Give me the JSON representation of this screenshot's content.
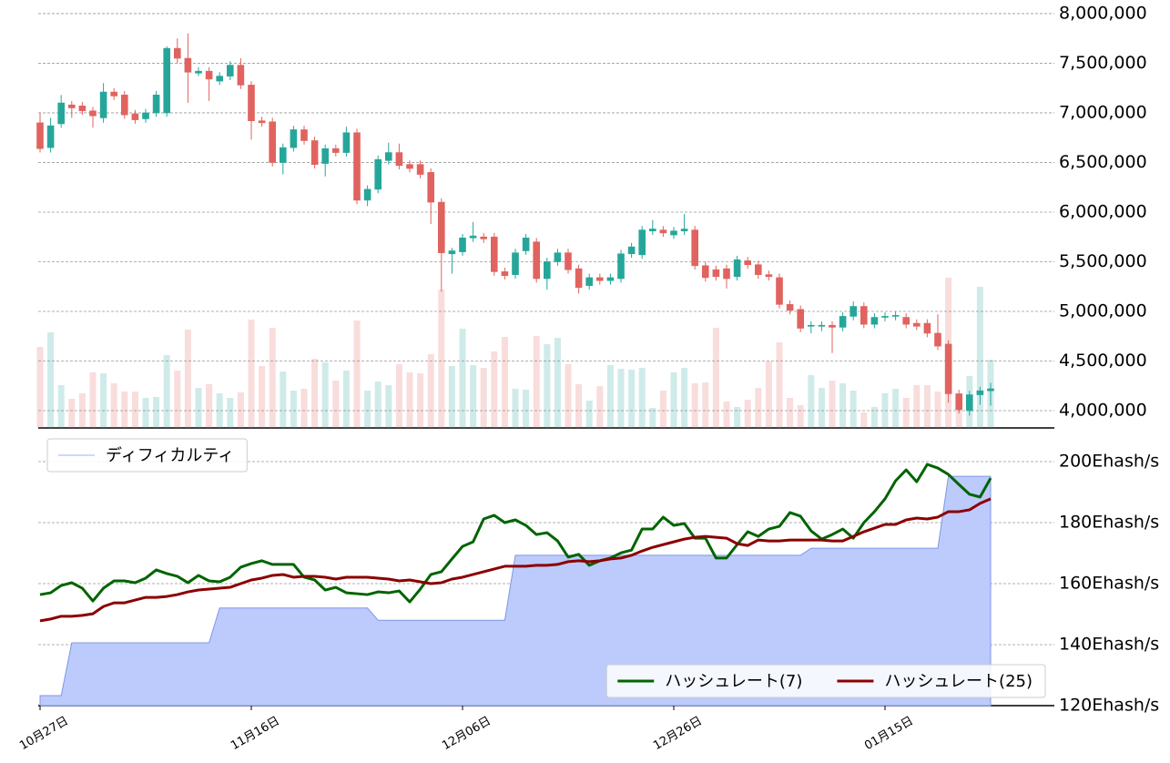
{
  "chart_data": [
    {
      "type": "candlestick",
      "open": [
        6900000,
        6650000,
        6890000,
        7080000,
        7070000,
        7020000,
        6950000,
        7210000,
        7180000,
        6990000,
        6940000,
        7000000,
        7000000,
        7650000,
        7550000,
        7400000,
        7420000,
        7320000,
        7370000,
        7480000,
        7280000,
        6920000,
        6910000,
        6500000,
        6650000,
        6830000,
        6720000,
        6490000,
        6640000,
        6600000,
        6800000,
        6120000,
        6230000,
        6520000,
        6600000,
        6480000,
        6480000,
        6400000,
        6100000,
        5580000,
        5600000,
        5740000,
        5750000,
        5750000,
        5400000,
        5370000,
        5610000,
        5700000,
        5330000,
        5500000,
        5590000,
        5430000,
        5260000,
        5340000,
        5310000,
        5330000,
        5580000,
        5570000,
        5810000,
        5820000,
        5770000,
        5810000,
        5820000,
        5460000,
        5420000,
        5430000,
        5350000,
        5510000,
        5470000,
        5370000,
        5340000,
        5070000,
        5020000,
        4850000,
        4850000,
        4860000,
        4840000,
        4950000,
        5050000,
        4870000,
        4940000,
        4950000,
        4940000,
        4880000,
        4880000,
        4780000,
        4670000,
        4170000,
        4000000,
        4160000,
        4200000
      ],
      "high": [
        7000000,
        6950000,
        7180000,
        7120000,
        7110000,
        7060000,
        7300000,
        7250000,
        7220000,
        7030000,
        7040000,
        7220000,
        7670000,
        7750000,
        7800000,
        7460000,
        7460000,
        7410000,
        7520000,
        7550000,
        7320000,
        6960000,
        6950000,
        6690000,
        6870000,
        6870000,
        6760000,
        6680000,
        6680000,
        6860000,
        6840000,
        6270000,
        6570000,
        6700000,
        6690000,
        6520000,
        6520000,
        6440000,
        6140000,
        5640000,
        5780000,
        5900000,
        5790000,
        5790000,
        5440000,
        5630000,
        5780000,
        5740000,
        5540000,
        5630000,
        5630000,
        5470000,
        5380000,
        5380000,
        5380000,
        5620000,
        5690000,
        5860000,
        5920000,
        5860000,
        5850000,
        5980000,
        5860000,
        5500000,
        5460000,
        5470000,
        5560000,
        5550000,
        5510000,
        5410000,
        5380000,
        5110000,
        5060000,
        4900000,
        4900000,
        4900000,
        4990000,
        5100000,
        5090000,
        4980000,
        4990000,
        5000000,
        4980000,
        4920000,
        4920000,
        4970000,
        4710000,
        4210000,
        4200000,
        4240000,
        4280000
      ],
      "low": [
        6600000,
        6600000,
        6850000,
        6950000,
        6980000,
        6850000,
        6900000,
        7130000,
        6940000,
        6890000,
        6900000,
        6960000,
        6960000,
        7500000,
        7100000,
        7370000,
        7120000,
        7280000,
        7330000,
        7240000,
        6730000,
        6860000,
        6460000,
        6380000,
        6610000,
        6680000,
        6440000,
        6360000,
        6560000,
        6560000,
        6080000,
        6060000,
        6190000,
        6480000,
        6430000,
        6400000,
        6340000,
        5880000,
        5200000,
        5380000,
        5560000,
        5700000,
        5690000,
        5360000,
        5320000,
        5330000,
        5570000,
        5290000,
        5220000,
        5460000,
        5380000,
        5180000,
        5220000,
        5270000,
        5270000,
        5290000,
        5540000,
        5530000,
        5770000,
        5750000,
        5730000,
        5770000,
        5420000,
        5300000,
        5310000,
        5230000,
        5310000,
        5430000,
        5330000,
        5310000,
        5030000,
        4970000,
        4790000,
        4780000,
        4800000,
        4580000,
        4800000,
        4910000,
        4830000,
        4830000,
        4900000,
        4910000,
        4830000,
        4810000,
        4740000,
        4610000,
        4080000,
        3970000,
        3950000,
        4060000,
        4050000
      ],
      "close": [
        6640000,
        6870000,
        7100000,
        7050000,
        7020000,
        6970000,
        7210000,
        7170000,
        6980000,
        6930000,
        7000000,
        7180000,
        7650000,
        7550000,
        7410000,
        7420000,
        7340000,
        7370000,
        7480000,
        7280000,
        6920000,
        6900000,
        6500000,
        6650000,
        6830000,
        6720000,
        6480000,
        6640000,
        6600000,
        6800000,
        6120000,
        6230000,
        6530000,
        6600000,
        6470000,
        6440000,
        6380000,
        6100000,
        5590000,
        5610000,
        5740000,
        5760000,
        5730000,
        5400000,
        5360000,
        5590000,
        5740000,
        5330000,
        5500000,
        5590000,
        5420000,
        5240000,
        5340000,
        5310000,
        5340000,
        5580000,
        5650000,
        5820000,
        5830000,
        5790000,
        5810000,
        5830000,
        5460000,
        5340000,
        5350000,
        5330000,
        5520000,
        5470000,
        5370000,
        5350000,
        5070000,
        5010000,
        4830000,
        4860000,
        4860000,
        4840000,
        4950000,
        5050000,
        4870000,
        4940000,
        4950000,
        4960000,
        4870000,
        4850000,
        4780000,
        4650000,
        4170000,
        4010000,
        4160000,
        4200000,
        4220000
      ],
      "volume": [
        89,
        105,
        47,
        32,
        38,
        61,
        60,
        49,
        40,
        40,
        33,
        34,
        80,
        63,
        108,
        44,
        48,
        38,
        33,
        39,
        119,
        68,
        110,
        62,
        41,
        43,
        76,
        72,
        52,
        63,
        118,
        41,
        51,
        47,
        70,
        61,
        60,
        81,
        152,
        68,
        109,
        69,
        66,
        84,
        100,
        43,
        42,
        101,
        92,
        99,
        70,
        48,
        30,
        46,
        69,
        65,
        64,
        66,
        22,
        41,
        61,
        66,
        49,
        50,
        110,
        29,
        23,
        31,
        44,
        73,
        94,
        33,
        25,
        58,
        44,
        52,
        49,
        41,
        17,
        23,
        38,
        43,
        33,
        47,
        47,
        40,
        165,
        23,
        57,
        155,
        75
      ],
      "up_color": "#26a69a",
      "down_color": "#e0635f",
      "ylim": [
        3825700,
        8137000
      ],
      "yticks": [
        {
          "value": 4000000,
          "label": "4,000,000"
        },
        {
          "value": 4500000,
          "label": "4,500,000"
        },
        {
          "value": 5000000,
          "label": "5,000,000"
        },
        {
          "value": 5500000,
          "label": "5,500,000"
        },
        {
          "value": 6000000,
          "label": "6,000,000"
        },
        {
          "value": 6500000,
          "label": "6,500,000"
        },
        {
          "value": 7000000,
          "label": "7,000,000"
        },
        {
          "value": 7500000,
          "label": "7,500,000"
        },
        {
          "value": 8000000,
          "label": "8,000,000"
        }
      ],
      "grid": true
    },
    {
      "type": "line",
      "categories": [
        "10月27日",
        null,
        null,
        null,
        null,
        null,
        null,
        null,
        null,
        null,
        null,
        null,
        null,
        null,
        null,
        null,
        null,
        null,
        null,
        null,
        "11月16日",
        null,
        null,
        null,
        null,
        null,
        null,
        null,
        null,
        null,
        null,
        null,
        null,
        null,
        null,
        null,
        null,
        null,
        null,
        null,
        "12月06日",
        null,
        null,
        null,
        null,
        null,
        null,
        null,
        null,
        null,
        null,
        null,
        null,
        null,
        null,
        null,
        null,
        null,
        null,
        null,
        "12月26日",
        null,
        null,
        null,
        null,
        null,
        null,
        null,
        null,
        null,
        null,
        null,
        null,
        null,
        null,
        null,
        null,
        null,
        null,
        null,
        "01月15日",
        null,
        null,
        null,
        null,
        null,
        null,
        null,
        null,
        null,
        null
      ],
      "series": [
        {
          "name": "ディフィカルティ",
          "kind": "area",
          "color": "#bccbfb",
          "legend": "upper left",
          "values": [
            123.3,
            123.3,
            123.3,
            140.6,
            140.6,
            140.6,
            140.6,
            140.6,
            140.6,
            140.6,
            140.6,
            140.6,
            140.6,
            140.6,
            140.6,
            140.6,
            140.6,
            152.0,
            152.0,
            152.0,
            152.0,
            152.0,
            152.0,
            152.0,
            152.0,
            152.0,
            152.0,
            152.0,
            152.0,
            152.0,
            152.0,
            152.0,
            148.0,
            148.0,
            148.0,
            148.0,
            148.0,
            148.0,
            148.0,
            148.0,
            148.0,
            148.0,
            148.0,
            148.0,
            148.0,
            169.3,
            169.3,
            169.3,
            169.3,
            169.3,
            169.3,
            169.3,
            169.3,
            169.3,
            169.3,
            169.3,
            169.3,
            169.3,
            169.3,
            169.3,
            169.3,
            169.3,
            169.3,
            169.3,
            169.3,
            169.3,
            169.3,
            169.3,
            169.3,
            169.3,
            169.3,
            169.3,
            169.3,
            171.6,
            171.6,
            171.6,
            171.6,
            171.6,
            171.6,
            171.6,
            171.6,
            171.6,
            171.6,
            171.6,
            171.6,
            171.6,
            195.2,
            195.2,
            195.2,
            195.2,
            195.2
          ]
        },
        {
          "name": "ハッシュレート(7)",
          "kind": "line",
          "color": "#006400",
          "legend": "lower right",
          "values": [
            156.4,
            157.0,
            159.4,
            160.3,
            158.5,
            154.3,
            158.5,
            160.9,
            160.9,
            160.3,
            161.8,
            164.5,
            163.3,
            162.4,
            160.3,
            162.7,
            160.9,
            160.6,
            162.1,
            165.4,
            166.6,
            167.5,
            166.3,
            166.3,
            166.3,
            162.1,
            161.2,
            157.9,
            158.8,
            157.0,
            156.7,
            156.4,
            157.3,
            157.0,
            157.6,
            154.0,
            158.2,
            163.0,
            163.9,
            168.1,
            172.2,
            173.7,
            181.2,
            182.4,
            180.0,
            180.9,
            179.1,
            176.1,
            176.7,
            174.0,
            168.7,
            169.6,
            166.0,
            167.5,
            168.4,
            170.1,
            171.0,
            177.9,
            177.9,
            181.8,
            179.1,
            179.7,
            174.9,
            174.9,
            168.4,
            168.4,
            172.8,
            177.0,
            175.5,
            177.9,
            178.8,
            183.3,
            182.1,
            177.3,
            174.6,
            176.1,
            177.9,
            174.9,
            180.0,
            183.6,
            187.8,
            193.7,
            197.3,
            193.4,
            199.1,
            197.9,
            195.8,
            192.5,
            189.3,
            188.4,
            194.6
          ]
        },
        {
          "name": "ハッシュレート(25)",
          "kind": "line",
          "color": "#8b0000",
          "legend": "lower right",
          "values": [
            147.8,
            148.4,
            149.3,
            149.3,
            149.6,
            150.1,
            152.5,
            153.7,
            153.7,
            154.6,
            155.5,
            155.5,
            155.8,
            156.4,
            157.3,
            157.9,
            158.2,
            158.5,
            158.8,
            160.0,
            161.2,
            161.8,
            162.7,
            163.0,
            162.1,
            162.4,
            162.4,
            162.1,
            161.5,
            162.1,
            162.1,
            162.1,
            161.8,
            161.5,
            160.9,
            161.2,
            160.6,
            160.0,
            160.3,
            161.5,
            162.1,
            163.0,
            163.9,
            164.8,
            165.7,
            165.7,
            165.7,
            166.0,
            166.0,
            166.3,
            167.2,
            167.5,
            167.2,
            167.5,
            168.1,
            168.4,
            169.3,
            170.7,
            171.9,
            172.8,
            173.7,
            174.6,
            175.2,
            175.5,
            175.2,
            174.9,
            173.1,
            172.5,
            174.3,
            174.0,
            174.0,
            174.3,
            174.3,
            174.3,
            174.3,
            174.0,
            174.0,
            175.5,
            177.0,
            178.2,
            179.4,
            179.4,
            180.9,
            181.5,
            181.2,
            181.8,
            183.6,
            183.6,
            184.2,
            186.3,
            187.8
          ]
        }
      ],
      "ylim": [
        120,
        208.66
      ],
      "yticks": [
        {
          "value": 120,
          "label": "120Ehash/s"
        },
        {
          "value": 140,
          "label": "140Ehash/s"
        },
        {
          "value": 160,
          "label": "160Ehash/s"
        },
        {
          "value": 180,
          "label": "180Ehash/s"
        },
        {
          "value": 200,
          "label": "200Ehash/s"
        }
      ],
      "grid": true
    }
  ]
}
